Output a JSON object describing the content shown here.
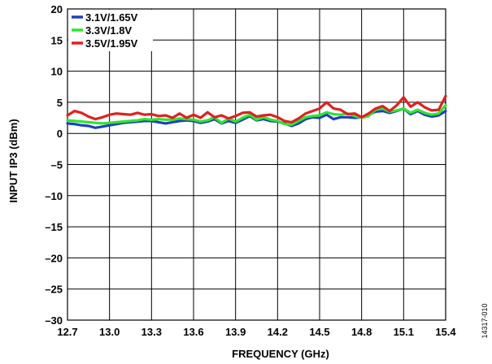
{
  "chart_data": {
    "type": "line",
    "xlabel": "FREQUENCY (GHz)",
    "ylabel": "INPUT IP3 (dBm)",
    "xlim": [
      12.7,
      15.4
    ],
    "ylim": [
      -30,
      20
    ],
    "xticks": [
      "12.7",
      "13.0",
      "13.3",
      "13.6",
      "13.9",
      "14.2",
      "14.5",
      "14.8",
      "15.1",
      "15.4"
    ],
    "yticks": [
      "20",
      "15",
      "10",
      "5",
      "0",
      "–5",
      "–10",
      "–15",
      "–20",
      "–25",
      "–30"
    ],
    "xtick_values": [
      12.7,
      13.0,
      13.3,
      13.6,
      13.9,
      14.2,
      14.5,
      14.8,
      15.1,
      15.4
    ],
    "ytick_values": [
      20,
      15,
      10,
      5,
      0,
      -5,
      -10,
      -15,
      -20,
      -25,
      -30
    ],
    "grid": true,
    "legend_position": "top-left",
    "series": [
      {
        "name": "3.1V/1.65V",
        "color": "#1f3fbf",
        "x": [
          12.7,
          12.75,
          12.8,
          12.85,
          12.9,
          12.95,
          13.0,
          13.05,
          13.1,
          13.15,
          13.2,
          13.25,
          13.3,
          13.35,
          13.4,
          13.45,
          13.5,
          13.55,
          13.6,
          13.65,
          13.7,
          13.75,
          13.8,
          13.85,
          13.9,
          13.95,
          14.0,
          14.05,
          14.1,
          14.15,
          14.2,
          14.25,
          14.3,
          14.35,
          14.4,
          14.45,
          14.5,
          14.55,
          14.6,
          14.65,
          14.7,
          14.75,
          14.8,
          14.85,
          14.9,
          14.95,
          15.0,
          15.05,
          15.1,
          15.15,
          15.2,
          15.25,
          15.3,
          15.35,
          15.4
        ],
        "values": [
          1.6,
          1.5,
          1.3,
          1.2,
          0.9,
          1.1,
          1.3,
          1.5,
          1.7,
          1.8,
          1.9,
          2.0,
          2.0,
          1.8,
          1.6,
          1.8,
          2.0,
          2.1,
          2.0,
          1.7,
          1.9,
          2.3,
          1.6,
          2.0,
          1.7,
          2.2,
          2.8,
          2.1,
          2.3,
          2.0,
          1.9,
          1.6,
          1.2,
          1.6,
          2.3,
          2.6,
          2.5,
          3.0,
          2.3,
          2.6,
          2.6,
          2.5,
          2.6,
          3.0,
          3.5,
          3.6,
          3.3,
          3.6,
          4.0,
          3.1,
          3.6,
          3.0,
          2.7,
          2.9,
          3.6
        ]
      },
      {
        "name": "3.3V/1.8V",
        "color": "#2ee62e",
        "x": [
          12.7,
          12.75,
          12.8,
          12.85,
          12.9,
          12.95,
          13.0,
          13.05,
          13.1,
          13.15,
          13.2,
          13.25,
          13.3,
          13.35,
          13.4,
          13.45,
          13.5,
          13.55,
          13.6,
          13.65,
          13.7,
          13.75,
          13.8,
          13.85,
          13.9,
          13.95,
          14.0,
          14.05,
          14.1,
          14.15,
          14.2,
          14.25,
          14.3,
          14.35,
          14.4,
          14.45,
          14.5,
          14.55,
          14.6,
          14.65,
          14.7,
          14.75,
          14.8,
          14.85,
          14.9,
          14.95,
          15.0,
          15.05,
          15.1,
          15.15,
          15.2,
          15.25,
          15.3,
          15.35,
          15.4
        ],
        "values": [
          2.1,
          2.0,
          1.9,
          1.8,
          1.7,
          1.6,
          1.7,
          1.8,
          1.9,
          2.0,
          2.1,
          2.3,
          2.2,
          2.3,
          2.2,
          2.2,
          2.4,
          2.3,
          2.2,
          1.9,
          2.1,
          2.6,
          1.7,
          2.4,
          1.9,
          2.5,
          3.0,
          2.2,
          2.6,
          2.2,
          2.0,
          1.5,
          1.4,
          2.0,
          2.6,
          2.8,
          2.9,
          3.4,
          3.1,
          3.0,
          3.2,
          2.8,
          2.5,
          2.8,
          3.8,
          4.0,
          3.5,
          3.7,
          4.0,
          3.3,
          3.8,
          3.3,
          3.0,
          3.2,
          4.5
        ]
      },
      {
        "name": "3.5V/1.95V",
        "color": "#e02020",
        "x": [
          12.7,
          12.75,
          12.8,
          12.85,
          12.9,
          12.95,
          13.0,
          13.05,
          13.1,
          13.15,
          13.2,
          13.25,
          13.3,
          13.35,
          13.4,
          13.45,
          13.5,
          13.55,
          13.6,
          13.65,
          13.7,
          13.75,
          13.8,
          13.85,
          13.9,
          13.95,
          14.0,
          14.05,
          14.1,
          14.15,
          14.2,
          14.25,
          14.3,
          14.35,
          14.4,
          14.45,
          14.5,
          14.55,
          14.6,
          14.65,
          14.7,
          14.75,
          14.8,
          14.85,
          14.9,
          14.95,
          15.0,
          15.05,
          15.1,
          15.15,
          15.2,
          15.25,
          15.3,
          15.35,
          15.4
        ],
        "values": [
          2.9,
          3.6,
          3.3,
          2.7,
          2.3,
          2.6,
          3.0,
          3.2,
          3.1,
          3.0,
          3.3,
          3.0,
          3.1,
          2.8,
          2.9,
          2.5,
          3.2,
          2.5,
          3.0,
          2.5,
          3.4,
          2.6,
          2.9,
          2.4,
          2.8,
          3.3,
          3.4,
          2.7,
          2.9,
          3.0,
          2.6,
          2.0,
          1.8,
          2.4,
          3.2,
          3.6,
          4.0,
          5.0,
          4.0,
          3.8,
          3.1,
          3.2,
          2.6,
          3.2,
          4.0,
          4.4,
          3.6,
          4.5,
          5.8,
          4.3,
          5.0,
          4.2,
          3.7,
          3.8,
          6.0
        ]
      }
    ]
  },
  "figure_id": "14317-010"
}
